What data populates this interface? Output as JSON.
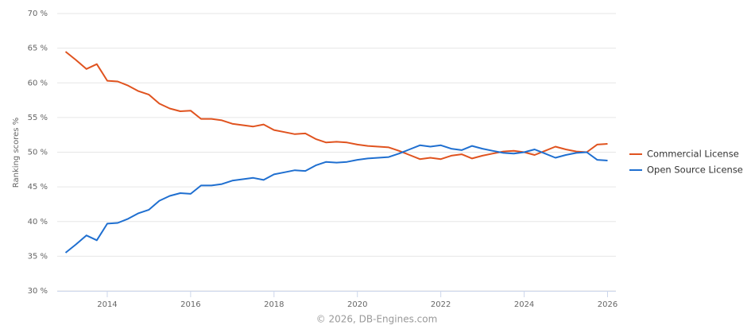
{
  "chart_data": {
    "type": "line",
    "y_label": "Ranking scores %",
    "credits": "© 2026, DB-Engines.com",
    "x": [
      2013.0,
      2013.25,
      2013.5,
      2013.75,
      2014.0,
      2014.25,
      2014.5,
      2014.75,
      2015.0,
      2015.25,
      2015.5,
      2015.75,
      2016.0,
      2016.25,
      2016.5,
      2016.75,
      2017.0,
      2017.25,
      2017.5,
      2017.75,
      2018.0,
      2018.25,
      2018.5,
      2018.75,
      2019.0,
      2019.25,
      2019.5,
      2019.75,
      2020.0,
      2020.25,
      2020.5,
      2020.75,
      2021.0,
      2021.25,
      2021.5,
      2021.75,
      2022.0,
      2022.25,
      2022.5,
      2022.75,
      2023.0,
      2023.25,
      2023.5,
      2023.75,
      2024.0,
      2024.25,
      2024.5,
      2024.75,
      2025.0,
      2025.25,
      2025.5,
      2025.75,
      2026.0
    ],
    "series": [
      {
        "name": "Commercial License",
        "color": "#e0531f",
        "values": [
          64.5,
          63.3,
          62.0,
          62.7,
          60.3,
          60.2,
          59.6,
          58.8,
          58.3,
          57.0,
          56.3,
          55.9,
          56.0,
          54.8,
          54.8,
          54.6,
          54.1,
          53.9,
          53.7,
          54.0,
          53.2,
          52.9,
          52.6,
          52.7,
          51.9,
          51.4,
          51.5,
          51.4,
          51.1,
          50.9,
          50.8,
          50.7,
          50.2,
          49.6,
          49.0,
          49.2,
          49.0,
          49.5,
          49.7,
          49.1,
          49.5,
          49.8,
          50.1,
          50.2,
          50.0,
          49.6,
          50.2,
          50.8,
          50.4,
          50.1,
          50.0,
          51.1,
          51.2
        ]
      },
      {
        "name": "Open Source License",
        "color": "#1f6fd0",
        "values": [
          35.5,
          36.7,
          38.0,
          37.3,
          39.7,
          39.8,
          40.4,
          41.2,
          41.7,
          43.0,
          43.7,
          44.1,
          44.0,
          45.2,
          45.2,
          45.4,
          45.9,
          46.1,
          46.3,
          46.0,
          46.8,
          47.1,
          47.4,
          47.3,
          48.1,
          48.6,
          48.5,
          48.6,
          48.9,
          49.1,
          49.2,
          49.3,
          49.8,
          50.4,
          51.0,
          50.8,
          51.0,
          50.5,
          50.3,
          50.9,
          50.5,
          50.2,
          49.9,
          49.8,
          50.0,
          50.4,
          49.8,
          49.2,
          49.6,
          49.9,
          50.0,
          48.9,
          48.8
        ]
      }
    ],
    "xlim": [
      2012.8,
      2026.2
    ],
    "xticks": [
      2014,
      2016,
      2018,
      2020,
      2022,
      2024,
      2026
    ],
    "ylim": [
      30,
      70
    ],
    "yticks": [
      {
        "value": 30,
        "label": "30 %"
      },
      {
        "value": 35,
        "label": "35 %"
      },
      {
        "value": 40,
        "label": "40 %"
      },
      {
        "value": 45,
        "label": "45 %"
      },
      {
        "value": 50,
        "label": "50 %"
      },
      {
        "value": 55,
        "label": "55 %"
      },
      {
        "value": 60,
        "label": "60 %"
      },
      {
        "value": 65,
        "label": "65 %"
      },
      {
        "value": 70,
        "label": "70 %"
      }
    ],
    "grid": true,
    "legend": "right"
  }
}
